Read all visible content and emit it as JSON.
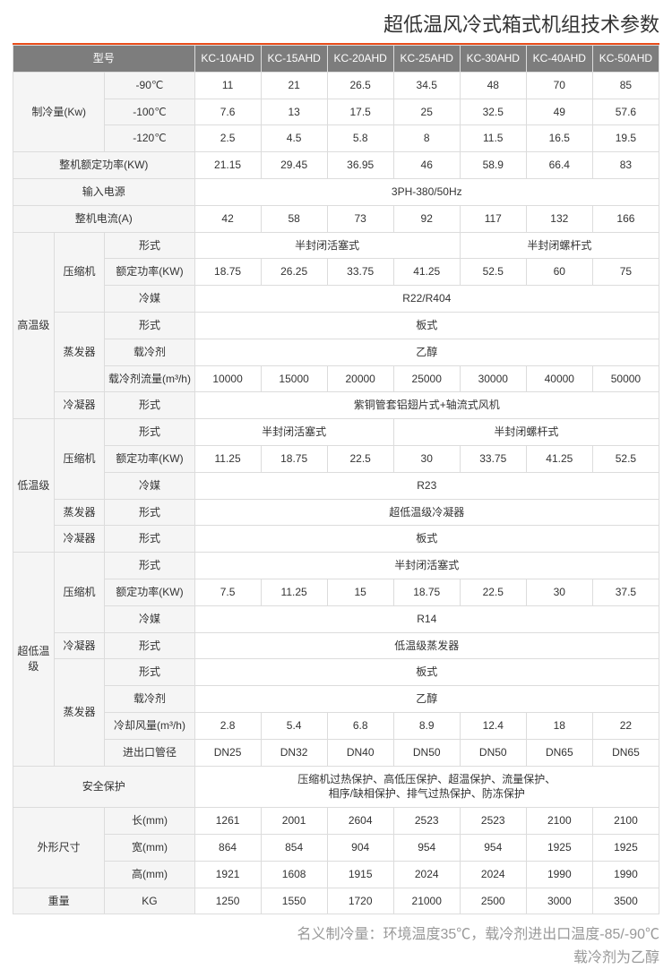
{
  "title": "超低温风冷式箱式机组技术参数",
  "header": {
    "model_label": "型号",
    "models": [
      "KC-10AHD",
      "KC-15AHD",
      "KC-20AHD",
      "KC-25AHD",
      "KC-30AHD",
      "KC-40AHD",
      "KC-50AHD"
    ]
  },
  "cooling": {
    "label": "制冷量(Kw)",
    "rows": [
      {
        "temp": "-90℃",
        "v": [
          "11",
          "21",
          "26.5",
          "34.5",
          "48",
          "70",
          "85"
        ]
      },
      {
        "temp": "-100℃",
        "v": [
          "7.6",
          "13",
          "17.5",
          "25",
          "32.5",
          "49",
          "57.6"
        ]
      },
      {
        "temp": "-120℃",
        "v": [
          "2.5",
          "4.5",
          "5.8",
          "8",
          "11.5",
          "16.5",
          "19.5"
        ]
      }
    ]
  },
  "rated_power": {
    "label": "整机额定功率(KW)",
    "v": [
      "21.15",
      "29.45",
      "36.95",
      "46",
      "58.9",
      "66.4",
      "83"
    ]
  },
  "power_in": {
    "label": "输入电源",
    "v": "3PH-380/50Hz"
  },
  "current": {
    "label": "整机电流(A)",
    "v": [
      "42",
      "58",
      "73",
      "92",
      "117",
      "132",
      "166"
    ]
  },
  "hi": {
    "label": "高温级",
    "comp": {
      "label": "压缩机",
      "form_label": "形式",
      "form_a": "半封闭活塞式",
      "form_b": "半封闭螺杆式",
      "pwr_label": "额定功率(KW)",
      "pwr": [
        "18.75",
        "26.25",
        "33.75",
        "41.25",
        "52.5",
        "60",
        "75"
      ],
      "ref_label": "冷媒",
      "ref": "R22/R404"
    },
    "evap": {
      "label": "蒸发器",
      "form_label": "形式",
      "form": "板式",
      "cl_label": "载冷剂",
      "cl": "乙醇",
      "flow_label": "载冷剂流量(m³/h)",
      "flow": [
        "10000",
        "15000",
        "20000",
        "25000",
        "30000",
        "40000",
        "50000"
      ]
    },
    "cond": {
      "label": "冷凝器",
      "form_label": "形式",
      "form": "紫铜管套铝翅片式+轴流式风机"
    }
  },
  "lo": {
    "label": "低温级",
    "comp": {
      "label": "压缩机",
      "form_label": "形式",
      "form_a": "半封闭活塞式",
      "form_b": "半封闭螺杆式",
      "pwr_label": "额定功率(KW)",
      "pwr": [
        "11.25",
        "18.75",
        "22.5",
        "30",
        "33.75",
        "41.25",
        "52.5"
      ],
      "ref_label": "冷媒",
      "ref": "R23"
    },
    "evap": {
      "label": "蒸发器",
      "form_label": "形式",
      "form": "超低温级冷凝器"
    },
    "cond": {
      "label": "冷凝器",
      "form_label": "形式",
      "form": "板式"
    }
  },
  "ul": {
    "label": "超低温级",
    "comp": {
      "label": "压缩机",
      "form_label": "形式",
      "form": "半封闭活塞式",
      "pwr_label": "额定功率(KW)",
      "pwr": [
        "7.5",
        "11.25",
        "15",
        "18.75",
        "22.5",
        "30",
        "37.5"
      ],
      "ref_label": "冷媒",
      "ref": "R14"
    },
    "cond": {
      "label": "冷凝器",
      "form_label": "形式",
      "form": "低温级蒸发器"
    },
    "evap": {
      "label": "蒸发器",
      "form_label": "形式",
      "form": "板式",
      "cl_label": "载冷剂",
      "cl": "乙醇",
      "air_label": "冷却风量(m³/h)",
      "air": [
        "2.8",
        "5.4",
        "6.8",
        "8.9",
        "12.4",
        "18",
        "22"
      ],
      "port_label": "进出口管径",
      "port": [
        "DN25",
        "DN32",
        "DN40",
        "DN50",
        "DN50",
        "DN65",
        "DN65"
      ]
    }
  },
  "safety": {
    "label": "安全保护",
    "v": "压缩机过热保护、高低压保护、超温保护、流量保护、\n相序/缺相保护、排气过热保护、防冻保护"
  },
  "dim": {
    "label": "外形尺寸",
    "l": {
      "label": "长(mm)",
      "v": [
        "1261",
        "2001",
        "2604",
        "2523",
        "2523",
        "2100",
        "2100"
      ]
    },
    "w": {
      "label": "宽(mm)",
      "v": [
        "864",
        "854",
        "904",
        "954",
        "954",
        "1925",
        "1925"
      ]
    },
    "h": {
      "label": "高(mm)",
      "v": [
        "1921",
        "1608",
        "1915",
        "2024",
        "2024",
        "1990",
        "1990"
      ]
    }
  },
  "weight": {
    "label": "重量",
    "unit": "KG",
    "v": [
      "1250",
      "1550",
      "1720",
      "21000",
      "2500",
      "3000",
      "3500"
    ]
  },
  "footnote": {
    "line1": "名义制冷量：环境温度35℃，载冷剂进出口温度-85/-90℃",
    "line2": "载冷剂为乙醇"
  },
  "colors": {
    "header_bg": "#7d7d7d",
    "header_fg": "#ffffff",
    "label_bg": "#f5f5f5",
    "border": "#dcdcdc",
    "accent": "#e84c1a",
    "footnote": "#999999"
  }
}
